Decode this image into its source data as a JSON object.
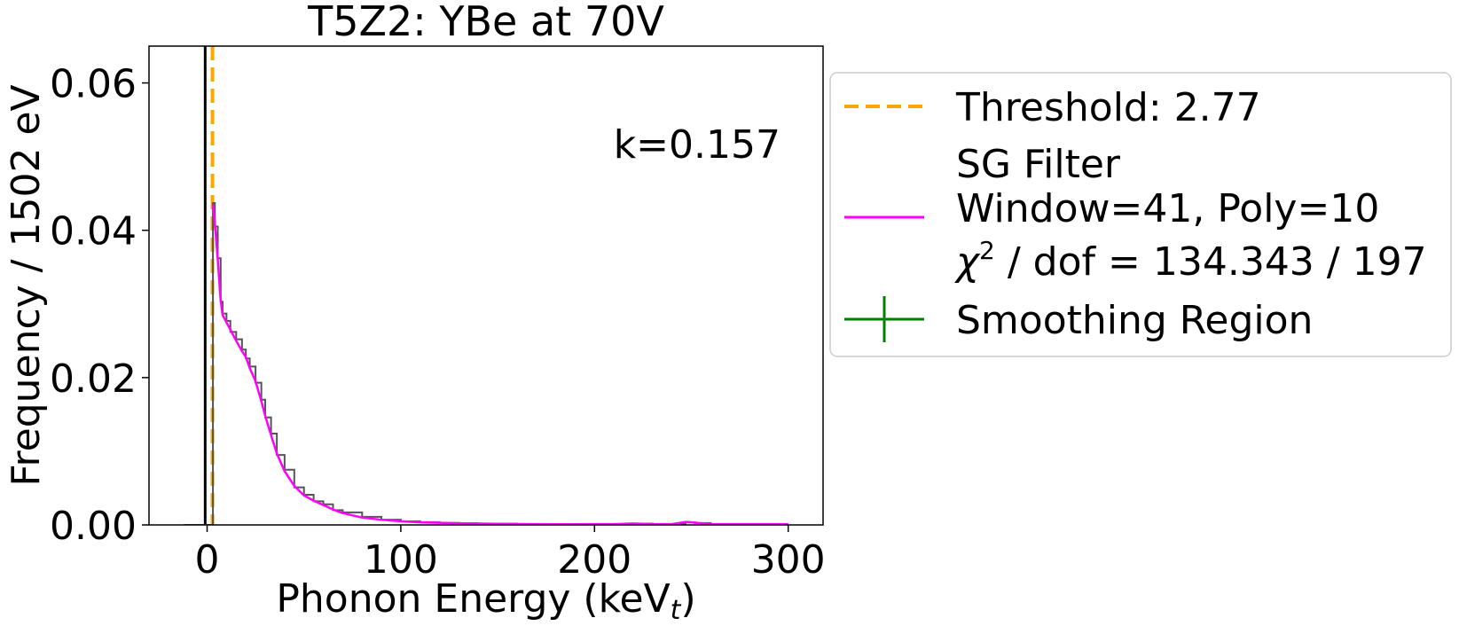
{
  "chart_data": {
    "type": "line",
    "title": "T5Z2: YBe at 70V",
    "xlabel": "Phonon Energy (keV",
    "xlabel_sub": "t",
    "xlabel_close": ")",
    "ylabel": "Frequency / 1502 eV",
    "annotation": "k=0.157",
    "xlim": [
      -30,
      318
    ],
    "ylim": [
      0,
      0.065
    ],
    "xticks": [
      0,
      100,
      200,
      300
    ],
    "xtick_labels": [
      "0",
      "100",
      "200",
      "300"
    ],
    "yticks": [
      0,
      0.02,
      0.04,
      0.06
    ],
    "ytick_labels": [
      "0.00",
      "0.02",
      "0.04",
      "0.06"
    ],
    "grid": false,
    "legend_position": "outside-right",
    "vlines": [
      {
        "x": -1.0,
        "color": "#000000",
        "style": "solid"
      },
      {
        "x": 2.77,
        "color": "#FFA500",
        "style": "dashed"
      }
    ],
    "legend": [
      {
        "label": "Threshold: 2.77",
        "color": "#FFA500",
        "marker": "dashed-line"
      },
      {
        "label_lines": [
          "SG Filter",
          "Window=41, Poly=10",
          "χ",
          "2",
          " / dof = 134.343 / 197"
        ],
        "color": "#FF00FF",
        "marker": "line"
      },
      {
        "label": "Smoothing Region",
        "color": "#008000",
        "marker": "errorbar"
      }
    ],
    "series": [
      {
        "name": "SG Filter",
        "color": "#FF00FF",
        "x": [
          3.0,
          4.0,
          5.5,
          7,
          8,
          10,
          12,
          15,
          18,
          20,
          22,
          25,
          28,
          30,
          33,
          36,
          40,
          45,
          50,
          55,
          60,
          65,
          70,
          80,
          90,
          100,
          110,
          120,
          130,
          140,
          150,
          160,
          170,
          180,
          190,
          200,
          210,
          220,
          230,
          240,
          247,
          252,
          260,
          270,
          280,
          290,
          300
        ],
        "y": [
          0.0435,
          0.041,
          0.036,
          0.0305,
          0.0285,
          0.0275,
          0.0265,
          0.025,
          0.0236,
          0.0228,
          0.0213,
          0.0195,
          0.0168,
          0.0148,
          0.0122,
          0.0097,
          0.0073,
          0.0053,
          0.004,
          0.0033,
          0.0027,
          0.0021,
          0.0016,
          0.001,
          0.0007,
          0.0005,
          0.00035,
          0.00028,
          0.00022,
          0.00018,
          0.00015,
          0.00012,
          0.0001,
          9e-05,
          9e-05,
          0.0001,
          0.0001,
          0.0002,
          0.0001,
          0.0001,
          0.0004,
          0.0003,
          0.0001,
          0.0001,
          0.0001,
          0.0001,
          0.0001
        ]
      },
      {
        "name": "Histogram",
        "color": "#555555",
        "x": [
          -12,
          -5,
          -1.0,
          3.0,
          4.0,
          5.5,
          7,
          8,
          10,
          12,
          15,
          18,
          20,
          22,
          25,
          28,
          30,
          33,
          36,
          40,
          45,
          50,
          55,
          60,
          65,
          70,
          80,
          90,
          100,
          110,
          120,
          130,
          140,
          150,
          160,
          170,
          180,
          190,
          200,
          210,
          220,
          230,
          240,
          247,
          252,
          260,
          270,
          280,
          290,
          300
        ],
        "y": [
          0.0,
          0.0,
          0.0,
          0.0437,
          0.0405,
          0.0362,
          0.0303,
          0.0287,
          0.0277,
          0.0262,
          0.0252,
          0.0238,
          0.0226,
          0.0215,
          0.0193,
          0.017,
          0.0146,
          0.0124,
          0.0095,
          0.0075,
          0.0051,
          0.0041,
          0.0032,
          0.0028,
          0.002,
          0.0017,
          0.0011,
          0.0007,
          0.0005,
          0.00037,
          0.00027,
          0.00023,
          0.00017,
          0.00016,
          0.00011,
          0.00011,
          8e-05,
          0.0001,
          9e-05,
          0.0001,
          0.00018,
          0.0001,
          0.00012,
          0.00035,
          0.00025,
          0.0001,
          9e-05,
          0.0001,
          0.0001,
          0.0001
        ]
      }
    ]
  }
}
